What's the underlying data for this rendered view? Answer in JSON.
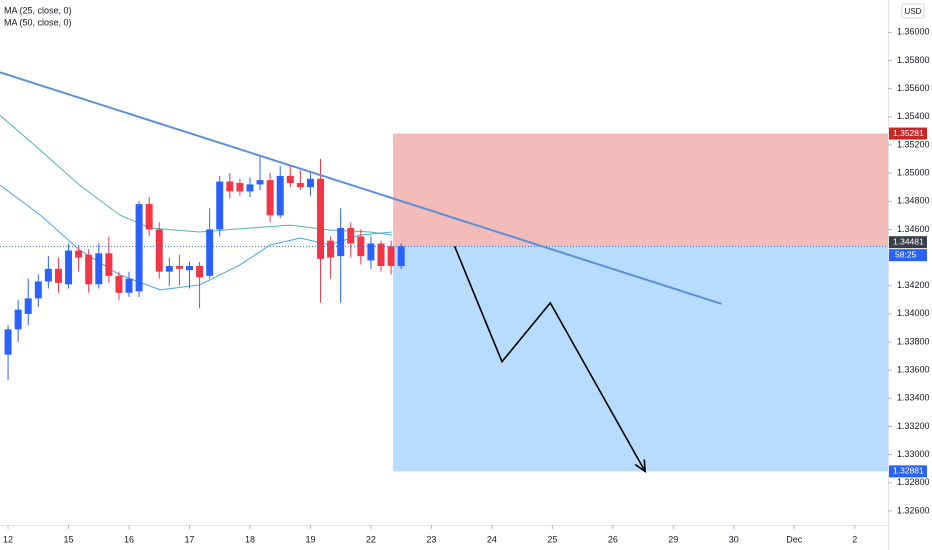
{
  "chart_data": {
    "type": "candlestick",
    "x": [
      0,
      1,
      2,
      3,
      4,
      5,
      6,
      7,
      8,
      9,
      10,
      11,
      12,
      13,
      14,
      15,
      16,
      17,
      18,
      19,
      20,
      21,
      22,
      23,
      24,
      25,
      26,
      27,
      28,
      29,
      30,
      31,
      32,
      33,
      34,
      35,
      36,
      37,
      38,
      39
    ],
    "open": [
      1.3371,
      1.3389,
      1.34,
      1.3411,
      1.3423,
      1.3432,
      1.3421,
      1.3445,
      1.3442,
      1.3421,
      1.3443,
      1.3427,
      1.3415,
      1.3416,
      1.3478,
      1.346,
      1.343,
      1.3434,
      1.3431,
      1.3434,
      1.3427,
      1.346,
      1.3494,
      1.3493,
      1.3487,
      1.3492,
      1.3495,
      1.347,
      1.3498,
      1.3493,
      1.349,
      1.3496,
      1.3452,
      1.3441,
      1.3461,
      1.3455,
      1.3438,
      1.345,
      1.3448,
      1.3434
    ],
    "high": [
      1.3392,
      1.341,
      1.3425,
      1.3428,
      1.3441,
      1.344,
      1.345,
      1.3449,
      1.3446,
      1.345,
      1.3455,
      1.343,
      1.343,
      1.348,
      1.3483,
      1.3465,
      1.344,
      1.3442,
      1.3437,
      1.3437,
      1.3475,
      1.3498,
      1.35,
      1.3496,
      1.3497,
      1.3512,
      1.35,
      1.3505,
      1.3505,
      1.3502,
      1.35,
      1.351,
      1.3455,
      1.3475,
      1.3465,
      1.346,
      1.3455,
      1.3452,
      1.3452,
      1.345
    ],
    "low": [
      1.3353,
      1.338,
      1.3392,
      1.3405,
      1.3418,
      1.3415,
      1.3418,
      1.343,
      1.3415,
      1.3418,
      1.3422,
      1.341,
      1.3412,
      1.3412,
      1.3455,
      1.3425,
      1.342,
      1.342,
      1.3418,
      1.3404,
      1.3425,
      1.3455,
      1.3482,
      1.3484,
      1.3483,
      1.3488,
      1.3465,
      1.3468,
      1.349,
      1.3488,
      1.3484,
      1.3408,
      1.3425,
      1.3408,
      1.344,
      1.3435,
      1.3432,
      1.343,
      1.3428,
      1.3432
    ],
    "close": [
      1.3389,
      1.3403,
      1.3411,
      1.3423,
      1.3432,
      1.3422,
      1.3445,
      1.344,
      1.3421,
      1.3443,
      1.3427,
      1.3415,
      1.3425,
      1.3478,
      1.346,
      1.343,
      1.3434,
      1.3432,
      1.3434,
      1.3426,
      1.346,
      1.3494,
      1.3487,
      1.3487,
      1.3492,
      1.3495,
      1.347,
      1.3498,
      1.3493,
      1.349,
      1.3496,
      1.3439,
      1.344,
      1.3461,
      1.345,
      1.3441,
      1.345,
      1.3434,
      1.3434,
      1.3448
    ],
    "up_color": "#2962ff",
    "down_color": "#f23645",
    "lines": [
      {
        "name": "MA (25, close, 0)",
        "color": "#42a5f5",
        "x": [
          -0.8,
          3.2,
          7.1,
          11.1,
          15.1,
          19.0,
          23.0,
          26.0,
          29.0,
          31.9,
          34.9,
          38.1
        ],
        "values": [
          1.34915,
          1.34702,
          1.34454,
          1.34277,
          1.3417,
          1.34206,
          1.34348,
          1.34489,
          1.34539,
          1.34489,
          1.3456,
          1.34582
        ]
      },
      {
        "name": "MA (50, close, 0)",
        "color": "#4db6ac",
        "x": [
          -0.8,
          3.2,
          7.1,
          11.1,
          14.1,
          19.0,
          24.0,
          28.0,
          31.9,
          35.9,
          38.1
        ],
        "values": [
          1.35411,
          1.35163,
          1.34915,
          1.34702,
          1.3461,
          1.34582,
          1.3461,
          1.34631,
          1.34596,
          1.34582,
          1.3456
        ]
      }
    ],
    "trendline": {
      "color": "#5b8fd9",
      "x": [
        -0.8,
        70.8
      ],
      "values": [
        1.35716,
        1.34071
      ]
    },
    "projection": {
      "color": "#000000",
      "x": [
        44.3,
        49.0,
        53.8,
        63.2
      ],
      "values": [
        1.34481,
        1.3366,
        1.34078,
        1.32881
      ]
    },
    "position": {
      "start_x": 38.2,
      "end_x": 87.3,
      "stop": 1.35281,
      "entry": 1.34481,
      "target": 1.32881,
      "stop_color": "#f2b8b5",
      "target_color": "#b3daff",
      "countdown": "58:25"
    },
    "currency": "USD",
    "xlim": [
      -0.8,
      87.3
    ],
    "ylim": [
      1.325,
      1.3623
    ],
    "xticks": [
      {
        "value": 0,
        "label": "12"
      },
      {
        "value": 6,
        "label": "15"
      },
      {
        "value": 12,
        "label": "16"
      },
      {
        "value": 18,
        "label": "17"
      },
      {
        "value": 24,
        "label": "18"
      },
      {
        "value": 30,
        "label": "19"
      },
      {
        "value": 36,
        "label": "22"
      },
      {
        "value": 42,
        "label": "23"
      },
      {
        "value": 48,
        "label": "24"
      },
      {
        "value": 54,
        "label": "25"
      },
      {
        "value": 60,
        "label": "26"
      },
      {
        "value": 66,
        "label": "29"
      },
      {
        "value": 72,
        "label": "30"
      },
      {
        "value": 78,
        "label": "Dec"
      },
      {
        "value": 84,
        "label": "2"
      }
    ],
    "yticks": [
      {
        "value": 1.36,
        "label": "1.36000"
      },
      {
        "value": 1.358,
        "label": "1.35800"
      },
      {
        "value": 1.356,
        "label": "1.35600"
      },
      {
        "value": 1.354,
        "label": "1.35400"
      },
      {
        "value": 1.352,
        "label": "1.35200"
      },
      {
        "value": 1.35,
        "label": "1.35000"
      },
      {
        "value": 1.348,
        "label": "1.34800"
      },
      {
        "value": 1.346,
        "label": "1.34600"
      },
      {
        "value": 1.342,
        "label": "1.34200"
      },
      {
        "value": 1.34,
        "label": "1.34000"
      },
      {
        "value": 1.338,
        "label": "1.33800"
      },
      {
        "value": 1.336,
        "label": "1.33600"
      },
      {
        "value": 1.334,
        "label": "1.33400"
      },
      {
        "value": 1.332,
        "label": "1.33200"
      },
      {
        "value": 1.33,
        "label": "1.33000"
      },
      {
        "value": 1.328,
        "label": "1.32800"
      },
      {
        "value": 1.326,
        "label": "1.32600"
      }
    ],
    "grid": false
  }
}
